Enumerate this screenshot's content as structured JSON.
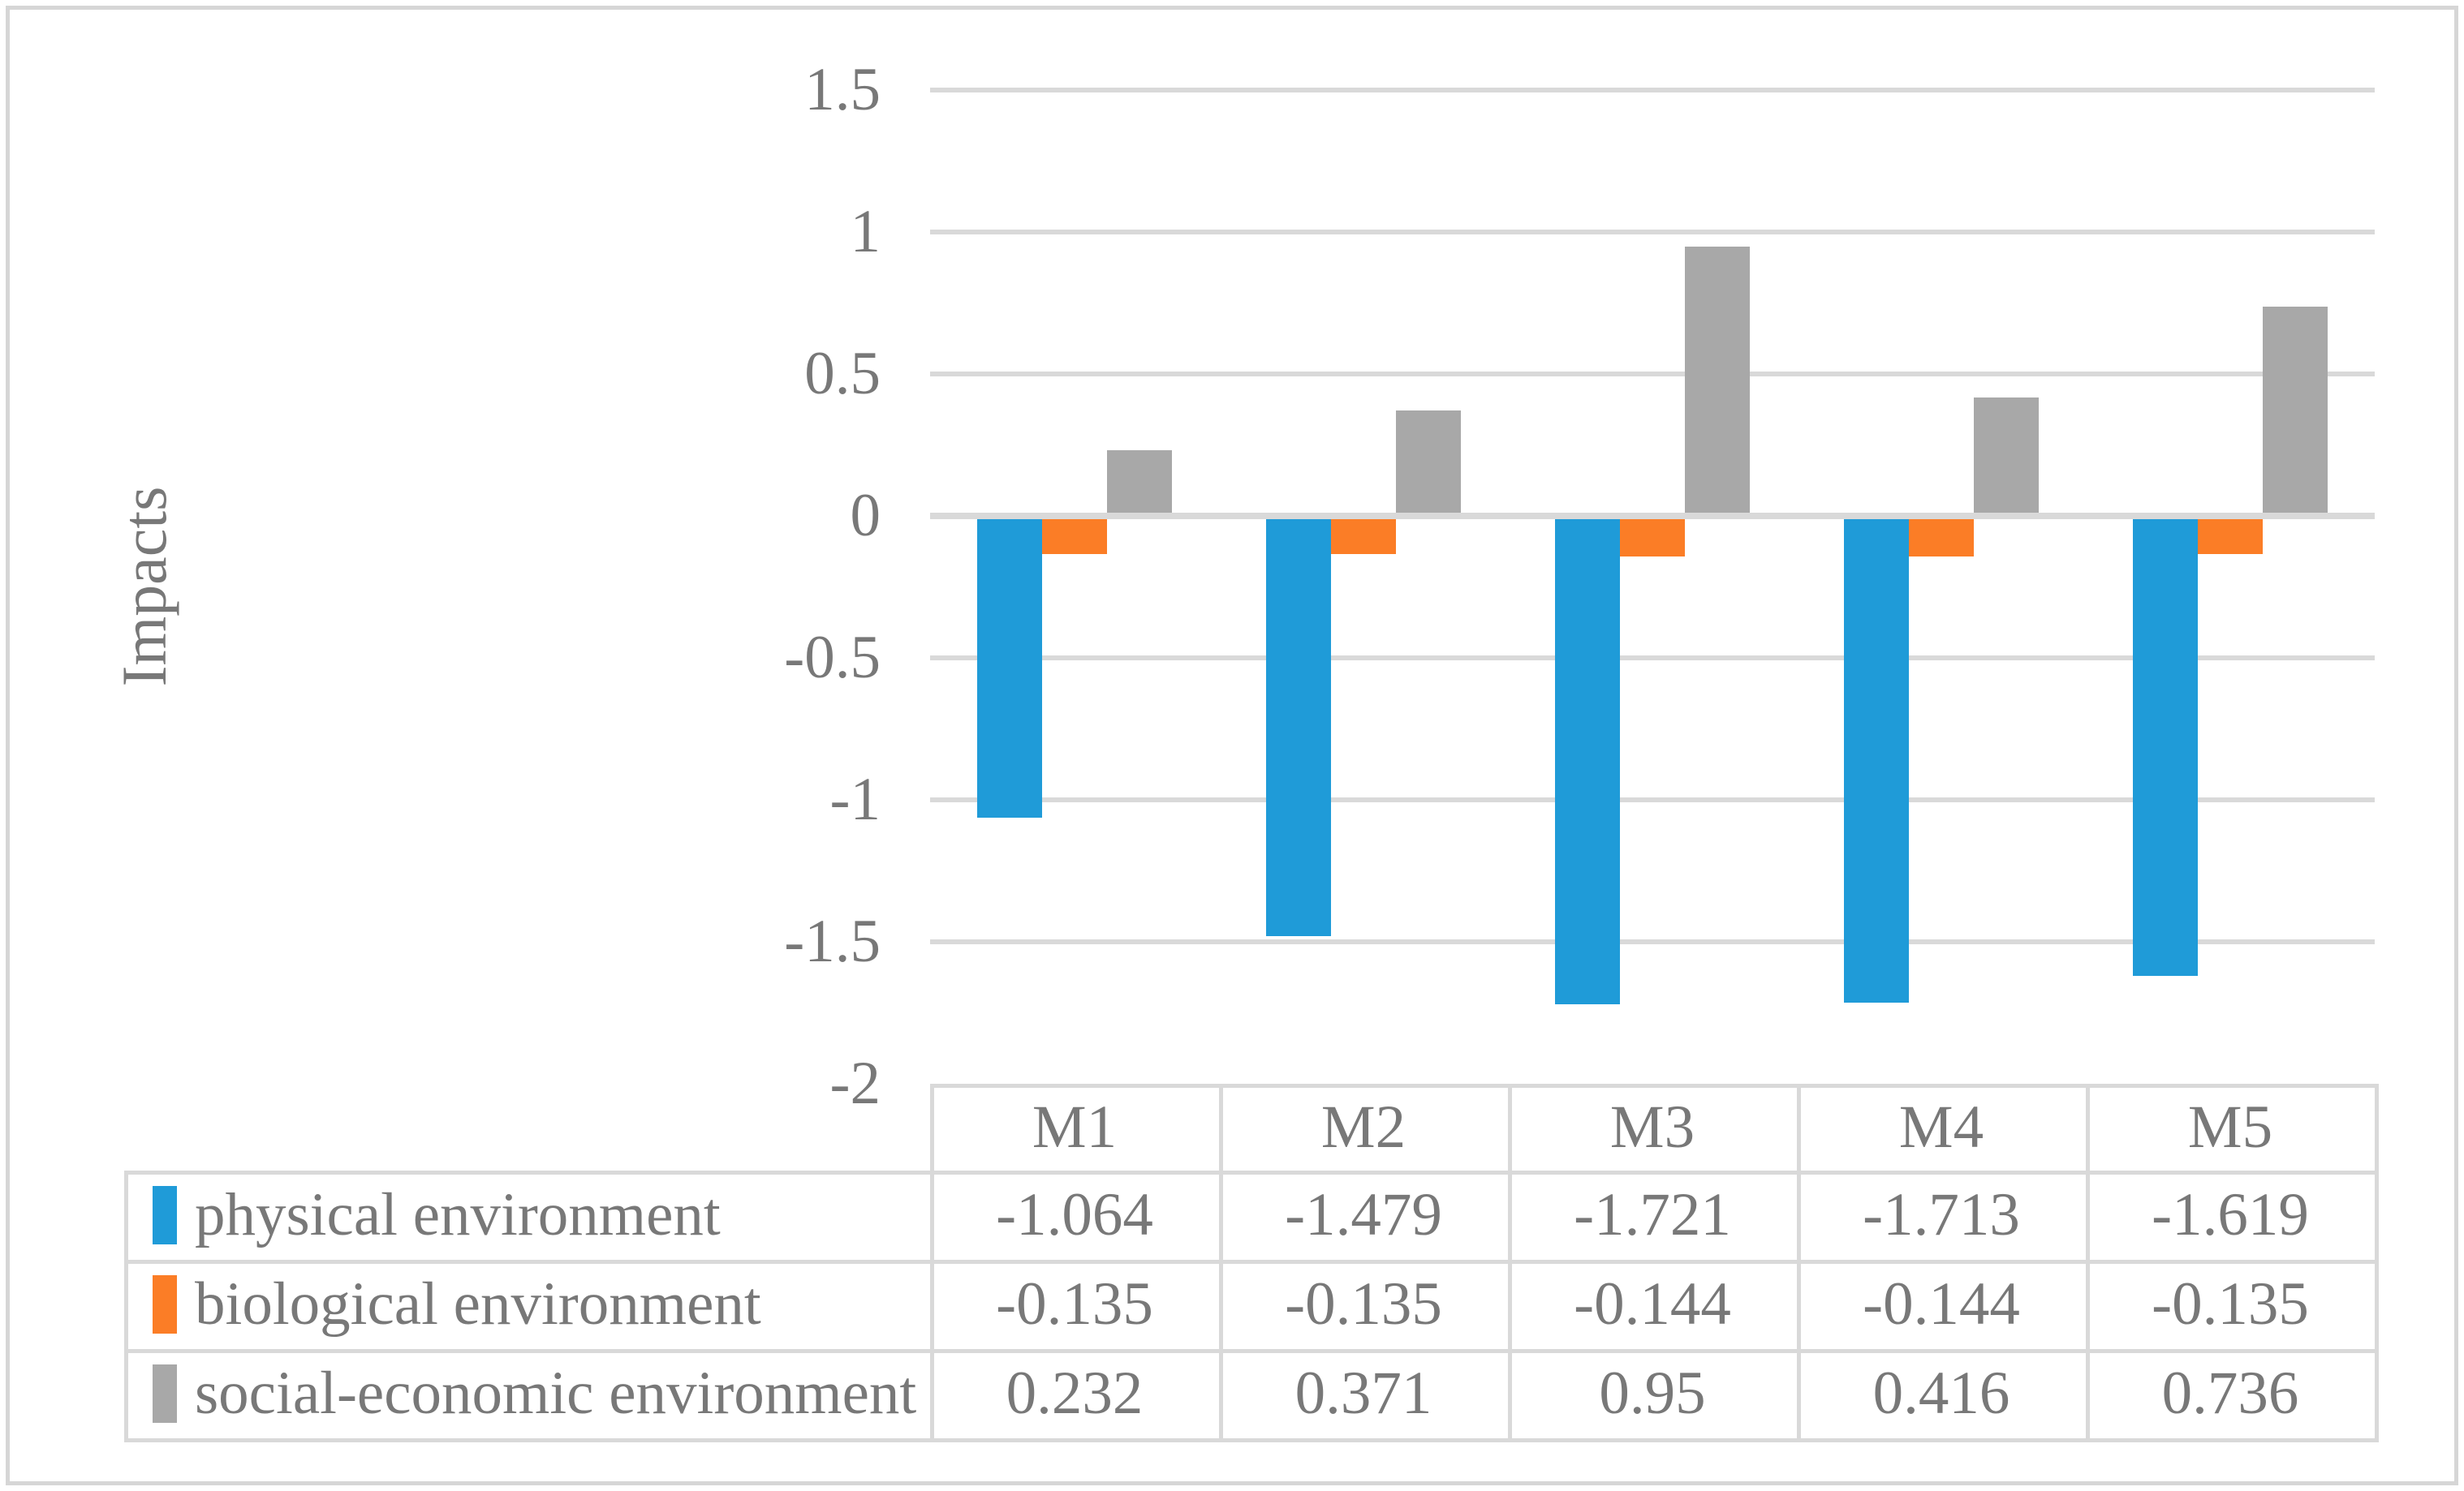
{
  "chart_data": {
    "type": "bar",
    "title": "",
    "ylabel": "Impacts",
    "categories": [
      "M1",
      "M2",
      "M3",
      "M4",
      "M5"
    ],
    "series": [
      {
        "name": "physical environment",
        "color": "#1F9BD8",
        "values": [
          -1.064,
          -1.479,
          -1.721,
          -1.713,
          -1.619
        ]
      },
      {
        "name": "biological environment",
        "color": "#FB7D26",
        "values": [
          -0.135,
          -0.135,
          -0.144,
          -0.144,
          -0.135
        ]
      },
      {
        "name": "social-economic environment",
        "color": "#A8A8A8",
        "values": [
          0.232,
          0.371,
          0.95,
          0.416,
          0.736
        ]
      }
    ],
    "ylim": [
      -2,
      1.5
    ],
    "ytick_step": 0.5,
    "ytick_labels": [
      "1.5",
      "1",
      "0.5",
      "0",
      "-0.5",
      "-1",
      "-1.5",
      "-2"
    ],
    "grid": true,
    "gridline_color": "#D9D9D9",
    "text_color": "#787878",
    "legend_position": "data-table-left-column"
  }
}
